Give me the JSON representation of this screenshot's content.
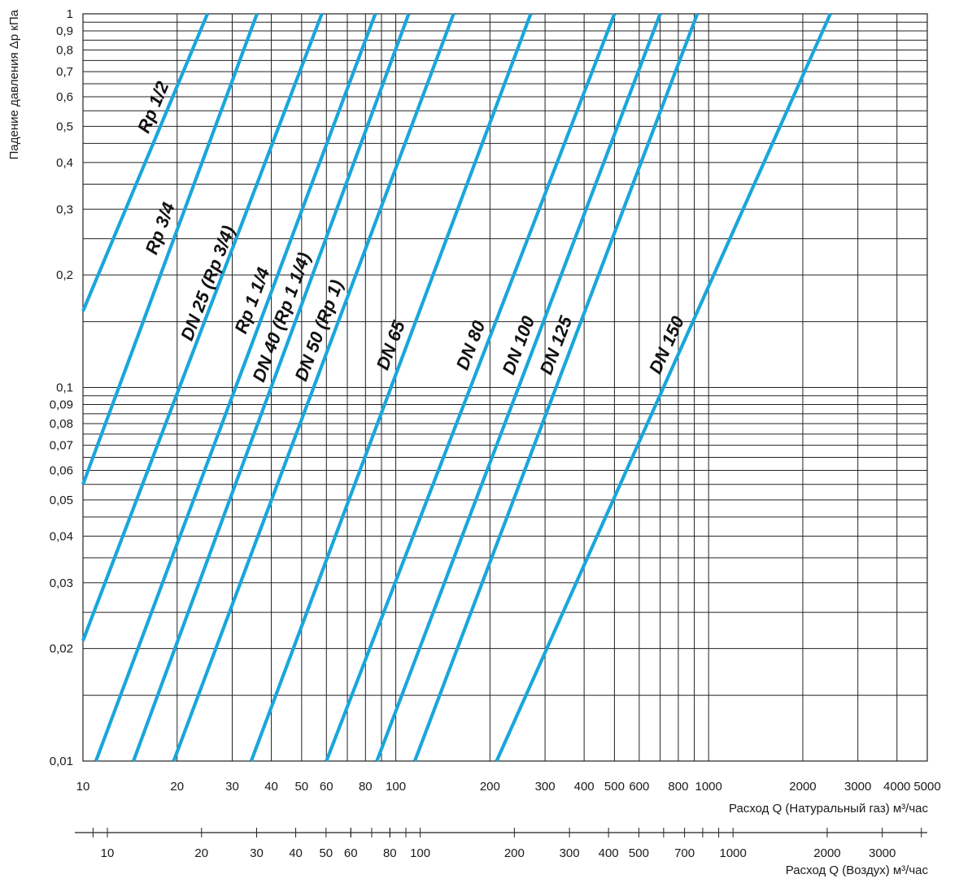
{
  "chart_data": {
    "type": "line",
    "title": "",
    "ylabel": "Падение давления Δp кПа",
    "xlabel": "Расход Q (Натуральный газ) м³/час",
    "x2label": "Расход Q (Воздух) м³/час",
    "xscale": "log",
    "yscale": "log",
    "xlim": [
      10,
      5000
    ],
    "ylim": [
      0.01,
      1
    ],
    "grid": true,
    "line_color": "#1aa6dc",
    "y_ticks": [
      {
        "v": 1,
        "label": "1"
      },
      {
        "v": 0.9,
        "label": "0,9"
      },
      {
        "v": 0.8,
        "label": "0,8"
      },
      {
        "v": 0.7,
        "label": "0,7"
      },
      {
        "v": 0.6,
        "label": "0,6"
      },
      {
        "v": 0.5,
        "label": "0,5"
      },
      {
        "v": 0.4,
        "label": "0,4"
      },
      {
        "v": 0.3,
        "label": "0,3"
      },
      {
        "v": 0.2,
        "label": "0,2"
      },
      {
        "v": 0.1,
        "label": "0,1"
      },
      {
        "v": 0.09,
        "label": "0,09"
      },
      {
        "v": 0.08,
        "label": "0,08"
      },
      {
        "v": 0.07,
        "label": "0,07"
      },
      {
        "v": 0.06,
        "label": "0,06"
      },
      {
        "v": 0.05,
        "label": "0,05"
      },
      {
        "v": 0.04,
        "label": "0,04"
      },
      {
        "v": 0.03,
        "label": "0,03"
      },
      {
        "v": 0.02,
        "label": "0,02"
      },
      {
        "v": 0.01,
        "label": "0,01"
      }
    ],
    "x_ticks": [
      {
        "v": 10,
        "label": "10"
      },
      {
        "v": 20,
        "label": "20"
      },
      {
        "v": 30,
        "label": "30"
      },
      {
        "v": 40,
        "label": "40"
      },
      {
        "v": 50,
        "label": "50"
      },
      {
        "v": 60,
        "label": "60"
      },
      {
        "v": 80,
        "label": "80"
      },
      {
        "v": 100,
        "label": "100"
      },
      {
        "v": 200,
        "label": "200"
      },
      {
        "v": 300,
        "label": "300"
      },
      {
        "v": 400,
        "label": "400"
      },
      {
        "v": 500,
        "label": "500"
      },
      {
        "v": 600,
        "label": "600"
      },
      {
        "v": 800,
        "label": "800"
      },
      {
        "v": 1000,
        "label": "1000"
      },
      {
        "v": 2000,
        "label": "2000"
      },
      {
        "v": 3000,
        "label": "3000"
      },
      {
        "v": 4000,
        "label": "4000"
      },
      {
        "v": 5000,
        "label": "5000"
      }
    ],
    "x2_ticks": [
      {
        "v": 10,
        "label": "10"
      },
      {
        "v": 20,
        "label": "20"
      },
      {
        "v": 30,
        "label": "30"
      },
      {
        "v": 40,
        "label": "40"
      },
      {
        "v": 50,
        "label": "50"
      },
      {
        "v": 60,
        "label": "60"
      },
      {
        "v": 80,
        "label": "80"
      },
      {
        "v": 100,
        "label": "100"
      },
      {
        "v": 200,
        "label": "200"
      },
      {
        "v": 300,
        "label": "300"
      },
      {
        "v": 400,
        "label": "400"
      },
      {
        "v": 500,
        "label": "500"
      },
      {
        "v": 700,
        "label": "700"
      },
      {
        "v": 1000,
        "label": "1000"
      },
      {
        "v": 2000,
        "label": "2000"
      },
      {
        "v": 3000,
        "label": "3000"
      }
    ],
    "x2_minor": [
      9,
      60,
      70,
      80,
      90,
      600,
      800,
      900,
      4000
    ],
    "series": [
      {
        "name": "Rp 1/2",
        "points": [
          [
            10,
            0.16
          ],
          [
            25,
            1.0
          ]
        ]
      },
      {
        "name": "Rp 3/4",
        "points": [
          [
            10,
            0.055
          ],
          [
            36,
            1.0
          ]
        ]
      },
      {
        "name": "DN 25 (Rp 3/4)",
        "points": [
          [
            10,
            0.021
          ],
          [
            58,
            1.0
          ]
        ]
      },
      {
        "name": "Rp 1 1/4",
        "points": [
          [
            11,
            0.01
          ],
          [
            86,
            1.0
          ]
        ]
      },
      {
        "name": "DN 40 (Rp 1 1/4)",
        "points": [
          [
            14.5,
            0.01
          ],
          [
            110,
            1.0
          ]
        ]
      },
      {
        "name": "DN 50 (Rp 1)",
        "points": [
          [
            19.5,
            0.01
          ],
          [
            153,
            1.0
          ]
        ]
      },
      {
        "name": "DN 65",
        "points": [
          [
            34.5,
            0.01
          ],
          [
            270,
            1.0
          ]
        ]
      },
      {
        "name": "DN 80",
        "points": [
          [
            60,
            0.01
          ],
          [
            500,
            1.0
          ]
        ]
      },
      {
        "name": "DN 100",
        "points": [
          [
            87,
            0.01
          ],
          [
            700,
            1.0
          ]
        ]
      },
      {
        "name": "DN 125",
        "points": [
          [
            115,
            0.01
          ],
          [
            920,
            1.0
          ]
        ]
      },
      {
        "name": "DN 150",
        "points": [
          [
            210,
            0.01
          ],
          [
            2450,
            1.0
          ]
        ]
      }
    ]
  }
}
